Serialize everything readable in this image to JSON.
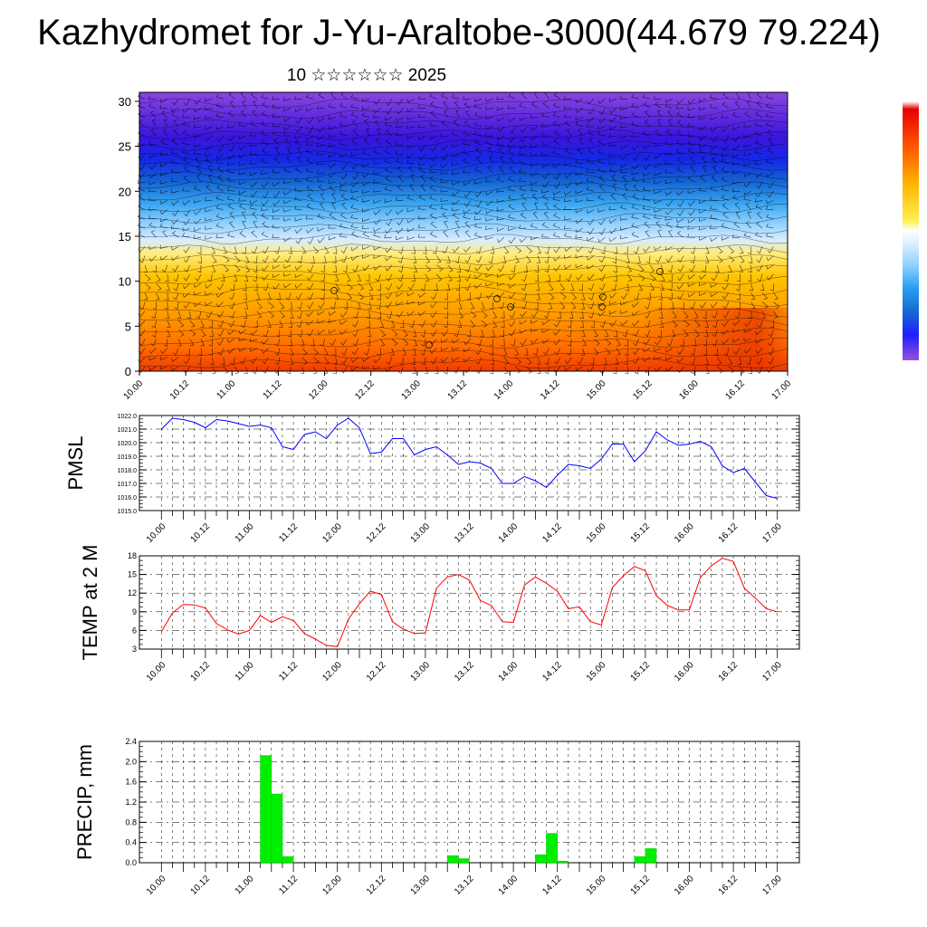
{
  "title": "Kazhydromet for J-Yu-Araltobe-3000(44.679 79.224)",
  "subtitle": "10 ☆☆☆☆☆☆ 2025",
  "colors": {
    "pmsl_line": "#0000ff",
    "temp_line": "#ff0000",
    "precip_bar": "#00ee00",
    "colorbar": [
      "#e60000",
      "#ff5a00",
      "#ff9600",
      "#ffc800",
      "#fff050",
      "#d2ebff",
      "#87cdff",
      "#28a0f0",
      "#1464d2",
      "#1e1eff",
      "#5a1edc",
      "#9650dc"
    ]
  },
  "chart_data": [
    {
      "type": "heatmap",
      "description_label": "cross-section",
      "xticks": [
        "10.00",
        "10.12",
        "11.00",
        "11.12",
        "12.00",
        "12.12",
        "13.00",
        "13.12",
        "14.00",
        "14.12",
        "15.00",
        "15.12",
        "16.00",
        "16.12",
        "17.00"
      ],
      "yticks": [
        "0",
        "5",
        "10",
        "15",
        "20",
        "25",
        "30"
      ],
      "ylim": [
        0,
        31
      ],
      "xlim": [
        0,
        14
      ]
    },
    {
      "type": "line",
      "ylabel": "PMSL",
      "ylim": [
        1015.0,
        1022.0
      ],
      "yticks": [
        "1015.0",
        "1016.0",
        "1017.0",
        "1018.0",
        "1019.0",
        "1020.0",
        "1021.0",
        "1022.0"
      ],
      "xticks": [
        "10.00",
        "10.12",
        "11.00",
        "11.12",
        "12.00",
        "12.12",
        "13.00",
        "13.12",
        "14.00",
        "14.12",
        "15.00",
        "15.12",
        "16.00",
        "16.12",
        "17.00"
      ],
      "xlim": [
        -0.5,
        14.5
      ],
      "x": [
        0,
        0.25,
        0.5,
        0.75,
        1,
        1.25,
        1.5,
        1.75,
        2,
        2.25,
        2.5,
        2.75,
        3,
        3.25,
        3.5,
        3.75,
        4,
        4.25,
        4.5,
        4.75,
        5,
        5.25,
        5.5,
        5.75,
        6,
        6.25,
        6.5,
        6.75,
        7,
        7.25,
        7.5,
        7.75,
        8,
        8.25,
        8.5,
        8.75,
        9,
        9.25,
        9.5,
        9.75,
        10,
        10.25,
        10.5,
        10.75,
        11,
        11.25,
        11.5,
        11.75,
        12,
        12.25,
        12.5,
        12.75,
        13,
        13.25,
        13.5,
        13.75,
        14
      ],
      "series": [
        {
          "values": [
            1021.0,
            1021.8,
            1021.7,
            1021.5,
            1021.1,
            1021.7,
            1021.6,
            1021.4,
            1021.2,
            1021.3,
            1021.1,
            1019.7,
            1019.5,
            1020.6,
            1020.8,
            1020.3,
            1021.3,
            1021.8,
            1021.1,
            1019.2,
            1019.3,
            1020.3,
            1020.3,
            1019.1,
            1019.5,
            1019.7,
            1019.1,
            1018.4,
            1018.6,
            1018.5,
            1018.1,
            1017.0,
            1017.0,
            1017.5,
            1017.2,
            1016.7,
            1017.6,
            1018.4,
            1018.3,
            1018.1,
            1018.8,
            1019.9,
            1019.9,
            1018.6,
            1019.4,
            1020.8,
            1020.2,
            1019.8,
            1019.9,
            1020.1,
            1019.7,
            1018.3,
            1017.8,
            1018.1,
            1017.1,
            1016.1,
            1015.9
          ]
        }
      ]
    },
    {
      "type": "line",
      "ylabel": "TEMP at 2 M",
      "ylim": [
        3,
        18
      ],
      "yticks": [
        "3",
        "6",
        "9",
        "12",
        "15",
        "18"
      ],
      "xticks": [
        "10.00",
        "10.12",
        "11.00",
        "11.12",
        "12.00",
        "12.12",
        "13.00",
        "13.12",
        "14.00",
        "14.12",
        "15.00",
        "15.12",
        "16.00",
        "16.12",
        "17.00"
      ],
      "xlim": [
        -0.5,
        14.5
      ],
      "x": [
        0,
        0.25,
        0.5,
        0.75,
        1,
        1.25,
        1.5,
        1.75,
        2,
        2.25,
        2.5,
        2.75,
        3,
        3.25,
        3.5,
        3.75,
        4,
        4.25,
        4.5,
        4.75,
        5,
        5.25,
        5.5,
        5.75,
        6,
        6.25,
        6.5,
        6.75,
        7,
        7.25,
        7.5,
        7.75,
        8,
        8.25,
        8.5,
        8.75,
        9,
        9.25,
        9.5,
        9.75,
        10,
        10.25,
        10.5,
        10.75,
        11,
        11.25,
        11.5,
        11.75,
        12,
        12.25,
        12.5,
        12.75,
        13,
        13.25,
        13.5,
        13.75,
        14
      ],
      "series": [
        {
          "values": [
            5.8,
            8.8,
            10.2,
            10.1,
            9.6,
            7.1,
            6.1,
            5.4,
            6.0,
            8.4,
            7.3,
            8.2,
            7.6,
            5.5,
            4.6,
            3.6,
            3.4,
            7.8,
            10.3,
            12.3,
            11.8,
            7.4,
            6.2,
            5.5,
            5.6,
            12.8,
            14.6,
            15.0,
            14.1,
            10.8,
            10.0,
            7.4,
            7.3,
            13.3,
            14.6,
            13.6,
            12.3,
            9.5,
            9.8,
            7.4,
            6.9,
            12.9,
            14.8,
            16.3,
            15.6,
            11.6,
            10.0,
            9.3,
            9.3,
            14.5,
            16.4,
            17.6,
            17.1,
            12.8,
            11.2,
            9.5,
            9.0
          ]
        }
      ]
    },
    {
      "type": "bar",
      "ylabel": "PRECIP, mm",
      "ylim": [
        0,
        2.4
      ],
      "yticks": [
        "0.0",
        "0.4",
        "0.8",
        "1.2",
        "1.6",
        "2.0",
        "2.4"
      ],
      "xticks": [
        "10.00",
        "10.12",
        "11.00",
        "11.12",
        "12.00",
        "12.12",
        "13.00",
        "13.12",
        "14.00",
        "14.12",
        "15.00",
        "15.12",
        "16.00",
        "16.12",
        "17.00"
      ],
      "xlim": [
        -0.5,
        14.5
      ],
      "bar_width": 0.25,
      "bars": [
        {
          "x": 2.375,
          "value": 2.12
        },
        {
          "x": 2.625,
          "value": 1.36
        },
        {
          "x": 2.875,
          "value": 0.12
        },
        {
          "x": 6.625,
          "value": 0.14
        },
        {
          "x": 6.875,
          "value": 0.08
        },
        {
          "x": 8.625,
          "value": 0.16
        },
        {
          "x": 8.875,
          "value": 0.58
        },
        {
          "x": 9.125,
          "value": 0.03
        },
        {
          "x": 10.875,
          "value": 0.12
        },
        {
          "x": 11.125,
          "value": 0.28
        }
      ]
    }
  ]
}
